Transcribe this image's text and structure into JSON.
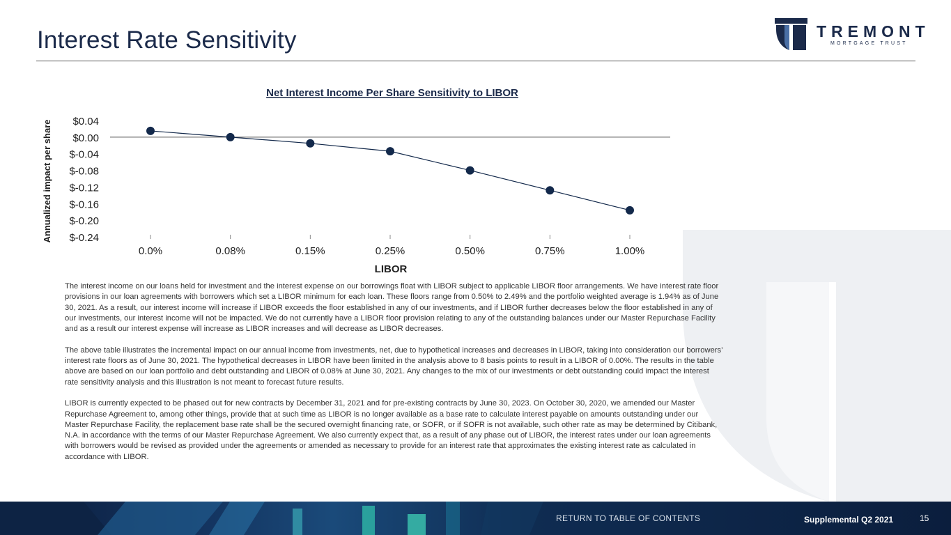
{
  "header": {
    "title": "Interest Rate Sensitivity"
  },
  "logo": {
    "word": "TREMONT",
    "sub": "MORTGAGE TRUST",
    "color": "#1b2a4a"
  },
  "chart_data": {
    "type": "line",
    "title": "Net Interest Income Per Share Sensitivity to LIBOR",
    "xlabel": "LIBOR",
    "ylabel": "Annualized impact per share",
    "categories": [
      "0.0%",
      "0.08%",
      "0.15%",
      "0.25%",
      "0.50%",
      "0.75%",
      "1.00%"
    ],
    "values": [
      0.015,
      0.0,
      -0.015,
      -0.034,
      -0.08,
      -0.128,
      -0.176
    ],
    "ylim": [
      -0.24,
      0.04
    ],
    "yticks": [
      0.04,
      0.0,
      -0.04,
      -0.08,
      -0.12,
      -0.16,
      -0.2,
      -0.24
    ],
    "ytick_labels": [
      "$0.04",
      "$0.00",
      "$-0.04",
      "$-0.08",
      "$-0.12",
      "$-0.16",
      "$-0.20",
      "$-0.24"
    ],
    "grid": false,
    "legend": "none",
    "series_color": "#13294b"
  },
  "body": {
    "paragraphs": [
      "The interest income on our loans held for investment and the interest expense on our borrowings float with LIBOR subject to applicable LIBOR floor arrangements. We have interest rate floor provisions in our loan agreements with borrowers which set a LIBOR minimum for each loan. These floors range from 0.50% to 2.49% and the portfolio weighted average is 1.94% as of June 30, 2021. As a result, our interest income will increase if LIBOR exceeds the floor established in any of our investments, and if LIBOR further decreases below the floor established in any of our investments, our interest income will not be impacted. We do not currently have a LIBOR floor provision relating to any of the outstanding balances under our Master Repurchase Facility and as a result our interest expense will increase as LIBOR increases and will decrease as LIBOR decreases.",
      "The above table illustrates the incremental impact on our annual income from investments, net, due to hypothetical increases and decreases in LIBOR, taking into consideration our borrowers’ interest rate floors as of June 30, 2021. The hypothetical decreases in LIBOR have been limited in the analysis above to 8 basis points to result in a LIBOR of 0.00%. The results in the table above are based on our loan portfolio and debt outstanding and LIBOR of 0.08% at June 30, 2021. Any changes to the mix of our investments or debt outstanding could impact the interest rate sensitivity analysis and this illustration is not meant to forecast future results.",
      "LIBOR is currently expected to be phased out for new contracts by December 31, 2021 and for pre-existing contracts by June 30, 2023. On October 30, 2020, we amended our Master Repurchase Agreement to, among other things, provide that at such time as LIBOR is no longer available as a base rate to calculate interest payable on amounts outstanding under our Master Repurchase Facility, the replacement base rate shall be the secured overnight financing rate, or SOFR, or if SOFR is not available, such other rate as may be determined by Citibank, N.A. in accordance with the terms of our Master Repurchase Agreement. We also currently expect that, as a result of any phase out of LIBOR, the interest rates under our loan agreements with borrowers would be revised as provided under the agreements or amended as necessary to provide for an interest rate that approximates the existing interest rate as calculated in accordance with LIBOR."
    ]
  },
  "footer": {
    "link": "RETURN TO TABLE OF CONTENTS",
    "label": "Supplemental Q2 2021",
    "page": "15"
  }
}
